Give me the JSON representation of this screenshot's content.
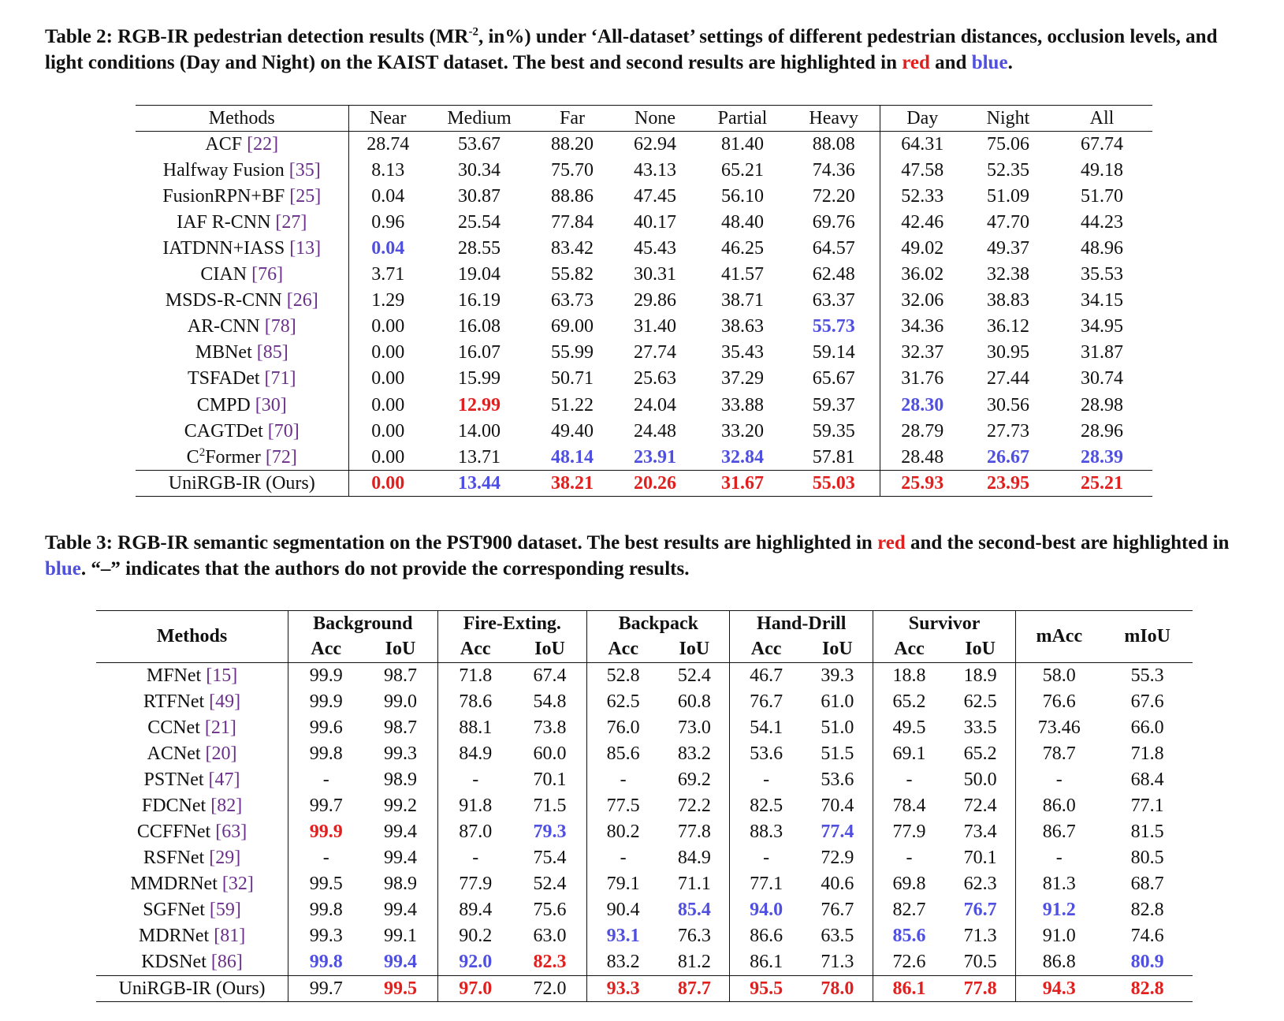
{
  "table2": {
    "caption_pre": "Table 2: RGB-IR pedestrian detection results (MR",
    "caption_sup": "-2",
    "caption_mid": ", in%) under ‘All-dataset’ settings of different pedestrian distances, occlusion levels, and light conditions (Day and Night) on the KAIST dataset. The best and second results are highlighted in ",
    "caption_red": "red",
    "caption_and": " and ",
    "caption_blue": "blue",
    "caption_end": ".",
    "headers": [
      "Methods",
      "Near",
      "Medium",
      "Far",
      "None",
      "Partial",
      "Heavy",
      "Day",
      "Night",
      "All"
    ],
    "rows": [
      {
        "name": "ACF ",
        "cite": "[22]",
        "values": [
          "28.74",
          "53.67",
          "88.20",
          "62.94",
          "81.40",
          "88.08",
          "64.31",
          "75.06",
          "67.74"
        ]
      },
      {
        "name": "Halfway Fusion ",
        "cite": "[35]",
        "values": [
          "8.13",
          "30.34",
          "75.70",
          "43.13",
          "65.21",
          "74.36",
          "47.58",
          "52.35",
          "49.18"
        ]
      },
      {
        "name": "FusionRPN+BF ",
        "cite": "[25]",
        "values": [
          "0.04",
          "30.87",
          "88.86",
          "47.45",
          "56.10",
          "72.20",
          "52.33",
          "51.09",
          "51.70"
        ]
      },
      {
        "name": "IAF R-CNN ",
        "cite": "[27]",
        "values": [
          "0.96",
          "25.54",
          "77.84",
          "40.17",
          "48.40",
          "69.76",
          "42.46",
          "47.70",
          "44.23"
        ]
      },
      {
        "name": "IATDNN+IASS ",
        "cite": "[13]",
        "values": [
          "0.04",
          "28.55",
          "83.42",
          "45.43",
          "46.25",
          "64.57",
          "49.02",
          "49.37",
          "48.96"
        ]
      },
      {
        "name": "CIAN ",
        "cite": "[76]",
        "values": [
          "3.71",
          "19.04",
          "55.82",
          "30.31",
          "41.57",
          "62.48",
          "36.02",
          "32.38",
          "35.53"
        ]
      },
      {
        "name": "MSDS-R-CNN ",
        "cite": "[26]",
        "values": [
          "1.29",
          "16.19",
          "63.73",
          "29.86",
          "38.71",
          "63.37",
          "32.06",
          "38.83",
          "34.15"
        ]
      },
      {
        "name": "AR-CNN ",
        "cite": "[78]",
        "values": [
          "0.00",
          "16.08",
          "69.00",
          "31.40",
          "38.63",
          "55.73",
          "34.36",
          "36.12",
          "34.95"
        ]
      },
      {
        "name": "MBNet ",
        "cite": "[85]",
        "values": [
          "0.00",
          "16.07",
          "55.99",
          "27.74",
          "35.43",
          "59.14",
          "32.37",
          "30.95",
          "31.87"
        ]
      },
      {
        "name": "TSFADet ",
        "cite": "[71]",
        "values": [
          "0.00",
          "15.99",
          "50.71",
          "25.63",
          "37.29",
          "65.67",
          "31.76",
          "27.44",
          "30.74"
        ]
      },
      {
        "name": "CMPD ",
        "cite": "[30]",
        "values": [
          "0.00",
          "12.99",
          "51.22",
          "24.04",
          "33.88",
          "59.37",
          "28.30",
          "30.56",
          "28.98"
        ]
      },
      {
        "name": "CAGTDet ",
        "cite": "[70]",
        "values": [
          "0.00",
          "14.00",
          "49.40",
          "24.48",
          "33.20",
          "59.35",
          "28.79",
          "27.73",
          "28.96"
        ]
      },
      {
        "name_pre": "C",
        "name_sup": "2",
        "name": "Former ",
        "cite": "[72]",
        "values": [
          "0.00",
          "13.71",
          "48.14",
          "23.91",
          "32.84",
          "57.81",
          "28.48",
          "26.67",
          "28.39"
        ]
      },
      {
        "name": "UniRGB-IR (Ours)",
        "cite": "",
        "values": [
          "0.00",
          "13.44",
          "38.21",
          "20.26",
          "31.67",
          "55.03",
          "25.93",
          "23.95",
          "25.21"
        ]
      }
    ],
    "highlights": {
      "red": [
        [
          10,
          1
        ],
        [
          13,
          0
        ],
        [
          13,
          2
        ],
        [
          13,
          3
        ],
        [
          13,
          4
        ],
        [
          13,
          5
        ],
        [
          13,
          6
        ],
        [
          13,
          7
        ],
        [
          13,
          8
        ]
      ],
      "blue": [
        [
          4,
          0
        ],
        [
          7,
          5
        ],
        [
          10,
          6
        ],
        [
          12,
          2
        ],
        [
          12,
          3
        ],
        [
          12,
          4
        ],
        [
          12,
          7
        ],
        [
          12,
          8
        ],
        [
          13,
          1
        ]
      ]
    }
  },
  "table3": {
    "caption_pre": "Table 3: RGB-IR semantic segmentation on the PST900 dataset. The best results are highlighted in ",
    "caption_red": "red",
    "caption_mid": " and the second-best are highlighted in ",
    "caption_blue": "blue",
    "caption_end": ". “–” indicates that the authors do not provide the corresponding results.",
    "methods_header": "Methods",
    "groups": [
      "Background",
      "Fire-Exting.",
      "Backpack",
      "Hand-Drill",
      "Survivor"
    ],
    "sub_acc": "Acc",
    "sub_iou": "IoU",
    "macc": "mAcc",
    "miou": "mIoU",
    "rows": [
      {
        "name": "MFNet ",
        "cite": "[15]",
        "values": [
          "99.9",
          "98.7",
          "71.8",
          "67.4",
          "52.8",
          "52.4",
          "46.7",
          "39.3",
          "18.8",
          "18.9",
          "58.0",
          "55.3"
        ]
      },
      {
        "name": "RTFNet ",
        "cite": "[49]",
        "values": [
          "99.9",
          "99.0",
          "78.6",
          "54.8",
          "62.5",
          "60.8",
          "76.7",
          "61.0",
          "65.2",
          "62.5",
          "76.6",
          "67.6"
        ]
      },
      {
        "name": "CCNet ",
        "cite": "[21]",
        "values": [
          "99.6",
          "98.7",
          "88.1",
          "73.8",
          "76.0",
          "73.0",
          "54.1",
          "51.0",
          "49.5",
          "33.5",
          "73.46",
          "66.0"
        ]
      },
      {
        "name": "ACNet ",
        "cite": "[20]",
        "values": [
          "99.8",
          "99.3",
          "84.9",
          "60.0",
          "85.6",
          "83.2",
          "53.6",
          "51.5",
          "69.1",
          "65.2",
          "78.7",
          "71.8"
        ]
      },
      {
        "name": "PSTNet ",
        "cite": "[47]",
        "values": [
          "-",
          "98.9",
          "-",
          "70.1",
          "-",
          "69.2",
          "-",
          "53.6",
          "-",
          "50.0",
          "-",
          "68.4"
        ]
      },
      {
        "name": "FDCNet ",
        "cite": "[82]",
        "values": [
          "99.7",
          "99.2",
          "91.8",
          "71.5",
          "77.5",
          "72.2",
          "82.5",
          "70.4",
          "78.4",
          "72.4",
          "86.0",
          "77.1"
        ]
      },
      {
        "name": "CCFFNet ",
        "cite": "[63]",
        "values": [
          "99.9",
          "99.4",
          "87.0",
          "79.3",
          "80.2",
          "77.8",
          "88.3",
          "77.4",
          "77.9",
          "73.4",
          "86.7",
          "81.5"
        ]
      },
      {
        "name": "RSFNet ",
        "cite": "[29]",
        "values": [
          "-",
          "99.4",
          "-",
          "75.4",
          "-",
          "84.9",
          "-",
          "72.9",
          "-",
          "70.1",
          "-",
          "80.5"
        ]
      },
      {
        "name": "MMDRNet ",
        "cite": "[32]",
        "values": [
          "99.5",
          "98.9",
          "77.9",
          "52.4",
          "79.1",
          "71.1",
          "77.1",
          "40.6",
          "69.8",
          "62.3",
          "81.3",
          "68.7"
        ]
      },
      {
        "name": "SGFNet ",
        "cite": "[59]",
        "values": [
          "99.8",
          "99.4",
          "89.4",
          "75.6",
          "90.4",
          "85.4",
          "94.0",
          "76.7",
          "82.7",
          "76.7",
          "91.2",
          "82.8"
        ]
      },
      {
        "name": "MDRNet ",
        "cite": "[81]",
        "values": [
          "99.3",
          "99.1",
          "90.2",
          "63.0",
          "93.1",
          "76.3",
          "86.6",
          "63.5",
          "85.6",
          "71.3",
          "91.0",
          "74.6"
        ]
      },
      {
        "name": "KDSNet ",
        "cite": "[86]",
        "values": [
          "99.8",
          "99.4",
          "92.0",
          "82.3",
          "83.2",
          "81.2",
          "86.1",
          "71.3",
          "72.6",
          "70.5",
          "86.8",
          "80.9"
        ]
      },
      {
        "name": "UniRGB-IR (Ours)",
        "cite": "",
        "values": [
          "99.7",
          "99.5",
          "97.0",
          "72.0",
          "93.3",
          "87.7",
          "95.5",
          "78.0",
          "86.1",
          "77.8",
          "94.3",
          "82.8"
        ]
      }
    ],
    "highlights": {
      "red": [
        [
          6,
          0
        ],
        [
          11,
          3
        ],
        [
          12,
          1
        ],
        [
          12,
          2
        ],
        [
          12,
          4
        ],
        [
          12,
          5
        ],
        [
          12,
          6
        ],
        [
          12,
          7
        ],
        [
          12,
          8
        ],
        [
          12,
          9
        ],
        [
          12,
          10
        ],
        [
          12,
          11
        ]
      ],
      "blue": [
        [
          6,
          3
        ],
        [
          6,
          7
        ],
        [
          9,
          5
        ],
        [
          9,
          6
        ],
        [
          9,
          9
        ],
        [
          9,
          10
        ],
        [
          10,
          4
        ],
        [
          10,
          8
        ],
        [
          11,
          0
        ],
        [
          11,
          1
        ],
        [
          11,
          2
        ],
        [
          11,
          11
        ]
      ]
    }
  }
}
